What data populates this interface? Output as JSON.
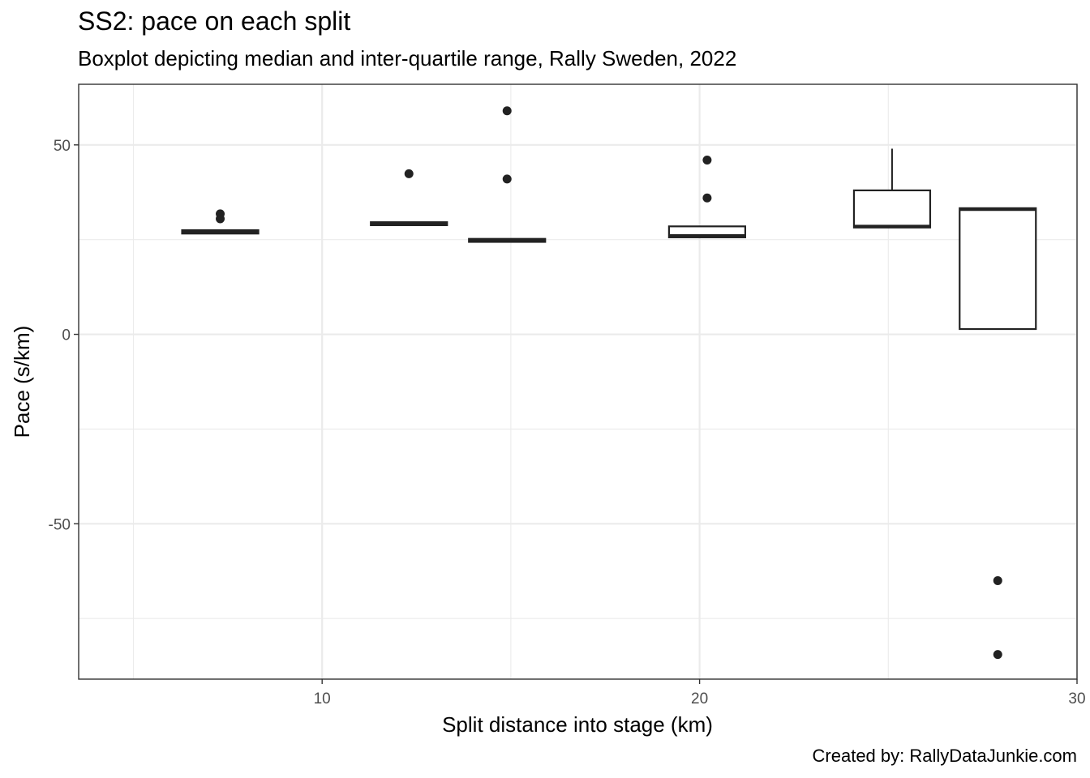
{
  "chart_data": {
    "type": "boxplot",
    "title": "SS2: pace on each split",
    "subtitle": "Boxplot depicting median and inter-quartile range, Rally Sweden, 2022",
    "caption": "Created by: RallyDataJunkie.com",
    "xlabel": "Split distance into stage (km)",
    "ylabel": "Pace (s/km)",
    "xlim": [
      3.55,
      30
    ],
    "ylim": [
      -91,
      66
    ],
    "x_ticks": [
      10,
      20,
      30
    ],
    "x_tick_labels": [
      "10",
      "20",
      "30"
    ],
    "y_ticks": [
      -50,
      0,
      50
    ],
    "y_tick_labels": [
      "-50",
      "0",
      "50"
    ],
    "grid": true,
    "boxes": [
      {
        "x": 7.3,
        "q1": 26.6,
        "median": 27.0,
        "q3": 27.5,
        "whisker_low": 26.6,
        "whisker_high": 27.5,
        "outliers": [
          30.5,
          31.8
        ]
      },
      {
        "x": 12.3,
        "q1": 28.8,
        "median": 29.2,
        "q3": 29.6,
        "whisker_low": 28.8,
        "whisker_high": 29.6,
        "outliers": [
          42.4
        ]
      },
      {
        "x": 14.9,
        "q1": 24.4,
        "median": 24.8,
        "q3": 25.2,
        "whisker_low": 24.4,
        "whisker_high": 25.2,
        "outliers": [
          41.0,
          59.0
        ]
      },
      {
        "x": 20.2,
        "q1": 25.6,
        "median": 26.0,
        "q3": 28.5,
        "whisker_low": 25.6,
        "whisker_high": 28.5,
        "outliers": [
          36.0,
          46.0
        ]
      },
      {
        "x": 25.1,
        "q1": 28.2,
        "median": 28.5,
        "q3": 38.0,
        "whisker_low": 28.2,
        "whisker_high": 49.0,
        "outliers": []
      },
      {
        "x": 27.9,
        "q1": 1.4,
        "median": 33.0,
        "q3": 33.3,
        "whisker_low": 1.4,
        "whisker_high": 33.3,
        "outliers": [
          -65.0,
          -84.5
        ]
      }
    ]
  }
}
